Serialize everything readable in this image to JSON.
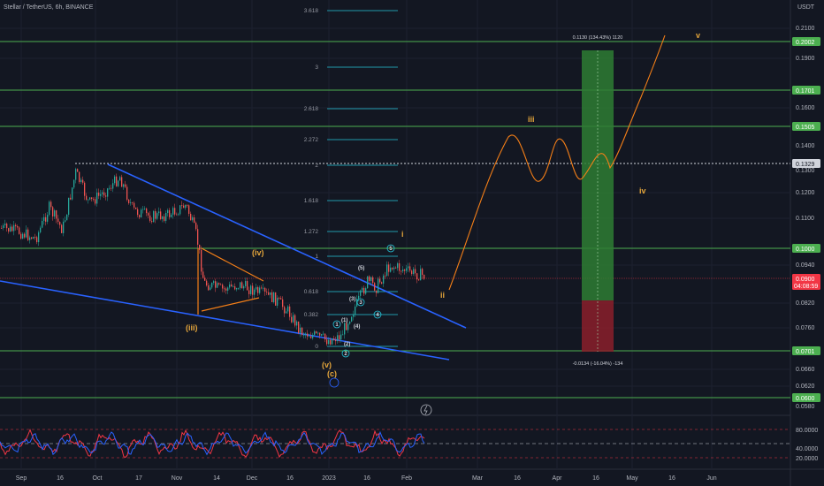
{
  "header": {
    "symbol": "Stellar / TetherUS, 6h, BINANCE",
    "unit": "USDT"
  },
  "price_axis": [
    "0.2100",
    "0.1900",
    "0.1600",
    "0.1400",
    "0.1300",
    "0.1200",
    "0.1100",
    "0.0940",
    "0.0820",
    "0.0760",
    "0.0660",
    "0.0620",
    "0.0580"
  ],
  "rsi_axis": [
    "80.0000",
    "40.0000",
    "20.0000"
  ],
  "time_axis": [
    "Sep",
    "16",
    "Oct",
    "17",
    "Nov",
    "14",
    "Dec",
    "16",
    "2023",
    "16",
    "Feb",
    "Mar",
    "16",
    "Apr",
    "16",
    "May",
    "16",
    "Jun"
  ],
  "badges": {
    "green": [
      "0.2002",
      "0.1701",
      "0.1505",
      "0.1000",
      "0.0701",
      "0.0600"
    ],
    "resistance": "0.1329",
    "current": "0.0900",
    "countdown": "04:08:59"
  },
  "fib_levels": [
    "3.618",
    "3",
    "2.618",
    "2.272",
    "2",
    "1.618",
    "1.272",
    "1",
    "0.618",
    "0.382",
    "0"
  ],
  "waves": {
    "main": [
      "(iii)",
      "(iv)",
      "(v)",
      "(c)",
      "i",
      "ii",
      "iii",
      "iv",
      "v"
    ],
    "sub": [
      "(1)",
      "(2)",
      "(3)",
      "(4)",
      "(5)"
    ],
    "circled": [
      "1",
      "2",
      "3",
      "4",
      "5"
    ]
  },
  "position": {
    "target": "0.1130 (134.43%) 1120",
    "stop": "-0.0134 (-16.04%) -134"
  },
  "colors": {
    "bg": "#131722",
    "green": "#4caf50",
    "blue": "#2962ff",
    "orange": "#f57f17",
    "red": "#f23645",
    "fib": "#26c6da"
  }
}
